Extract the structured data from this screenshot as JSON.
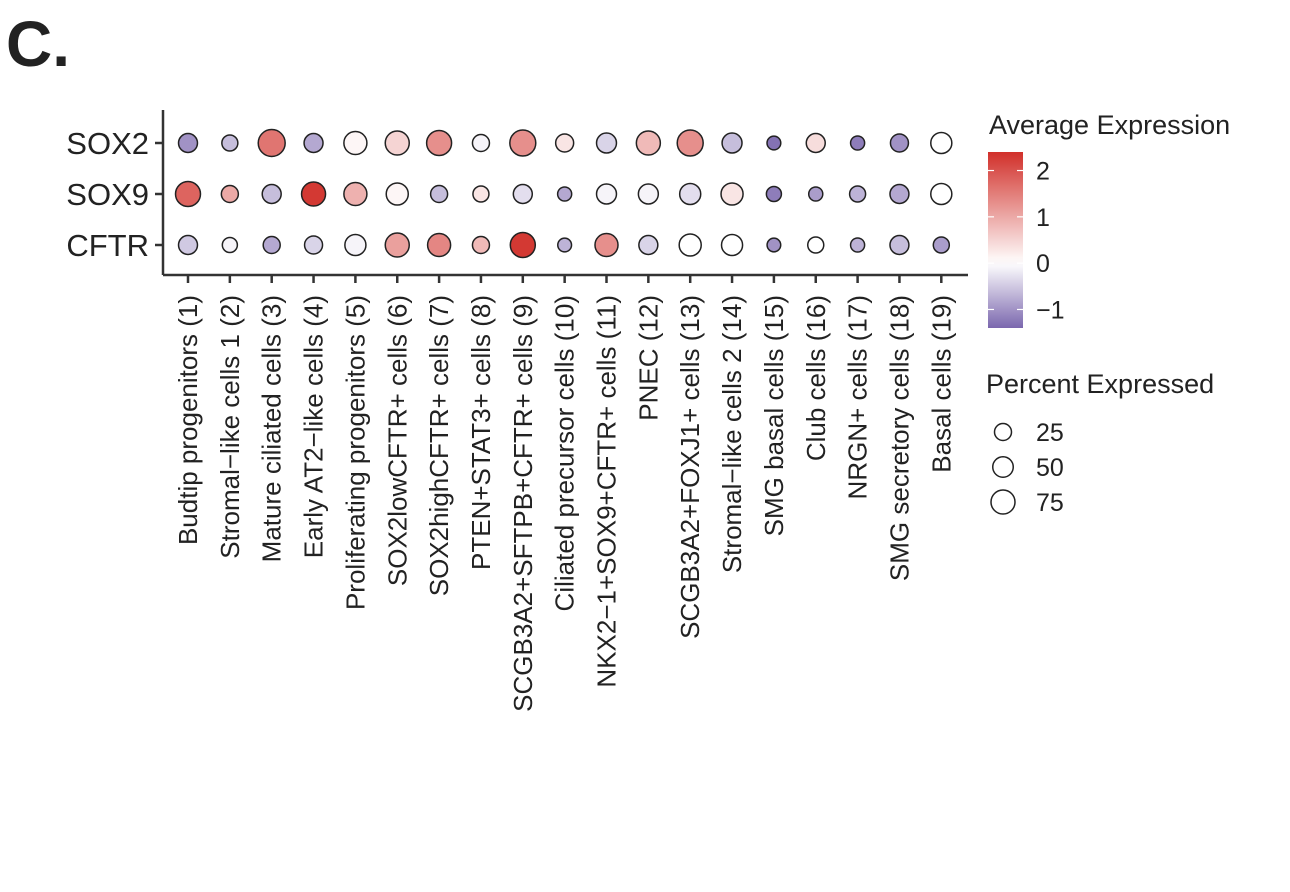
{
  "panel_label": "C.",
  "chart_data": {
    "type": "dotplot",
    "genes": [
      "SOX2",
      "SOX9",
      "CFTR"
    ],
    "categories": [
      "Budtip progenitors (1)",
      "Stromal−like cells 1 (2)",
      "Mature ciliated cells (3)",
      "Early AT2−like cells (4)",
      "Proliferating progenitors (5)",
      "SOX2lowCFTR+ cells (6)",
      "SOX2highCFTR+ cells (7)",
      "PTEN+STAT3+ cells (8)",
      "SCGB3A2+SFTPB+CFTR+ cells (9)",
      "Ciliated precursor cells (10)",
      "NKX2−1+SOX9+CFTR+ cells (11)",
      "PNEC (12)",
      "SCGB3A2+FOXJ1+ cells (13)",
      "Stromal−like cells 2 (14)",
      "SMG basal cells (15)",
      "Club cells (16)",
      "NRGN+ cells (17)",
      "SMG secretory cells (18)",
      "Basal cells (19)"
    ],
    "avg_expression": {
      "SOX2": [
        -1.0,
        -0.6,
        1.6,
        -0.8,
        0.1,
        0.5,
        1.3,
        -0.1,
        1.3,
        0.3,
        -0.4,
        0.8,
        1.3,
        -0.6,
        -1.3,
        0.4,
        -1.2,
        -1.0,
        0.0
      ],
      "SOX9": [
        1.8,
        1.0,
        -0.6,
        2.3,
        0.9,
        0.1,
        -0.6,
        0.3,
        -0.3,
        -0.8,
        -0.1,
        -0.1,
        -0.3,
        0.3,
        -1.2,
        -0.9,
        -0.7,
        -0.8,
        0.0
      ],
      "CFTR": [
        -0.5,
        -0.1,
        -0.8,
        -0.4,
        -0.1,
        1.1,
        1.4,
        0.8,
        2.3,
        -0.7,
        1.3,
        -0.4,
        0.0,
        0.0,
        -1.0,
        0.0,
        -0.7,
        -0.6,
        -0.9
      ]
    },
    "pct_expressed": {
      "SOX2": [
        39,
        18,
        96,
        39,
        68,
        75,
        82,
        25,
        89,
        32,
        46,
        75,
        89,
        46,
        2,
        39,
        4,
        32,
        54
      ],
      "SOX9": [
        82,
        25,
        39,
        75,
        68,
        61,
        25,
        18,
        39,
        4,
        46,
        46,
        54,
        61,
        11,
        4,
        18,
        39,
        54
      ],
      "CFTR": [
        39,
        11,
        25,
        32,
        54,
        75,
        68,
        25,
        82,
        2,
        68,
        39,
        61,
        54,
        1,
        18,
        4,
        39,
        18
      ]
    },
    "color_legend": {
      "title": "Average Expression",
      "ticks": [
        "2",
        "1",
        "0",
        "−1"
      ],
      "tick_values": [
        2,
        1,
        0,
        -1
      ],
      "range": [
        -1.4,
        2.4
      ],
      "low_color": "#7b67ae",
      "mid_color": "#ffffff",
      "high_color": "#d1302a"
    },
    "size_legend": {
      "title": "Percent Expressed",
      "values": [
        25,
        50,
        75
      ],
      "labels": [
        "25",
        "50",
        "75"
      ]
    },
    "grid": false,
    "legend_position": "right"
  }
}
